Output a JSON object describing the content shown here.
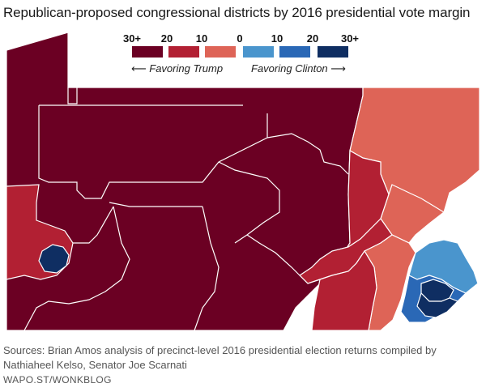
{
  "title": "Republican-proposed congressional districts by 2016 presidential vote margin",
  "legend": {
    "labels": [
      "30+",
      "20",
      "10",
      "0",
      "10",
      "20",
      "30+"
    ],
    "swatch_colors": [
      "#6b0023",
      "#b22033",
      "#de6457",
      "#4a95cd",
      "#2a68b6",
      "#0f2e62"
    ],
    "left_direction": "Favoring Trump",
    "right_direction": "Favoring Clinton",
    "left_arrow": "⟵",
    "right_arrow": "⟶"
  },
  "colors": {
    "trump_30_plus": "#6b0023",
    "trump_10_20": "#b22033",
    "trump_0_10": "#de6457",
    "clinton_0_10": "#4a95cd",
    "clinton_10_20": "#2a68b6",
    "clinton_30_plus": "#0f2e62",
    "border": "#ffffff"
  },
  "sources": "Sources: Brian Amos analysis of precinct-level 2016 presidential election returns compiled by Nathiaheel Kelso, Senator Joe Scarnati",
  "credit": "WAPO.ST/WONKBLOG"
}
